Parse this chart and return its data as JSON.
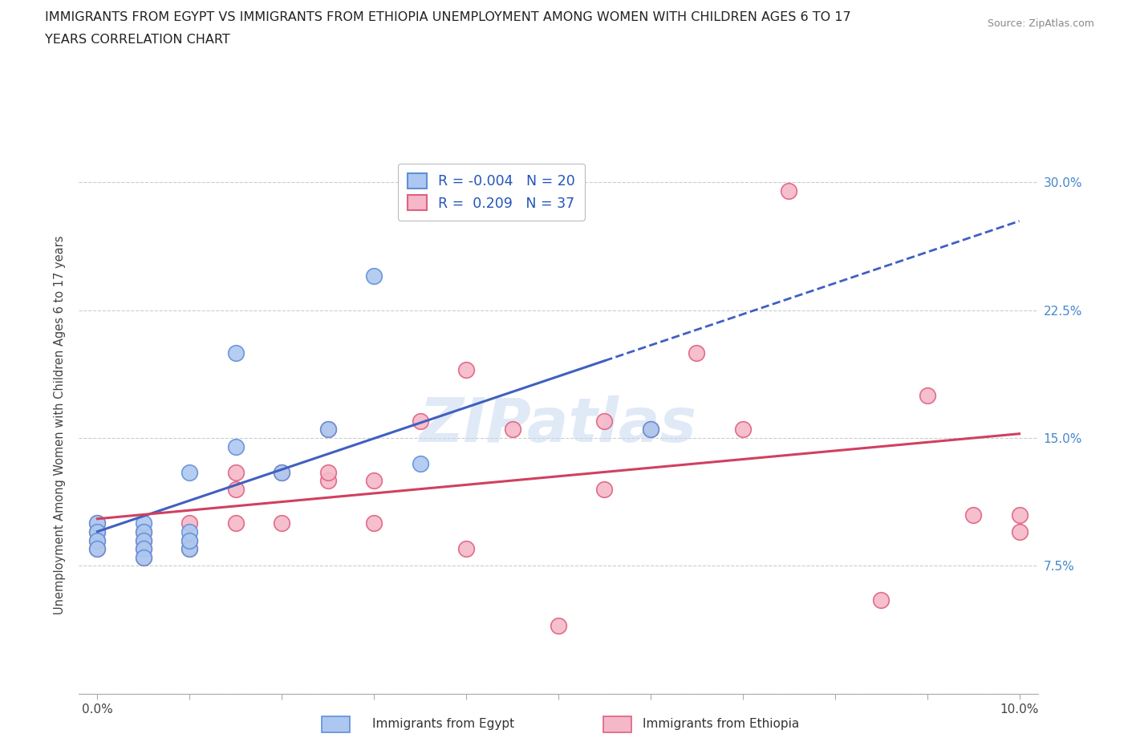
{
  "title_line1": "IMMIGRANTS FROM EGYPT VS IMMIGRANTS FROM ETHIOPIA UNEMPLOYMENT AMONG WOMEN WITH CHILDREN AGES 6 TO 17",
  "title_line2": "YEARS CORRELATION CHART",
  "source": "Source: ZipAtlas.com",
  "ylabel": "Unemployment Among Women with Children Ages 6 to 17 years",
  "xlim": [
    0.0,
    0.1
  ],
  "ylim": [
    0.0,
    0.315
  ],
  "ytick_positions": [
    0.0,
    0.075,
    0.15,
    0.225,
    0.3
  ],
  "ytick_labels": [
    "",
    "7.5%",
    "15.0%",
    "22.5%",
    "30.0%"
  ],
  "watermark": "ZIPatlas",
  "egypt_color": "#adc8f0",
  "ethiopia_color": "#f5b8c8",
  "egypt_edge_color": "#6090d8",
  "ethiopia_edge_color": "#e06080",
  "egypt_line_color": "#4060c0",
  "ethiopia_line_color": "#d04060",
  "background_color": "#ffffff",
  "grid_color": "#cccccc",
  "egypt_scatter_x": [
    0.0,
    0.0,
    0.0,
    0.0,
    0.005,
    0.005,
    0.005,
    0.005,
    0.005,
    0.01,
    0.01,
    0.01,
    0.01,
    0.015,
    0.015,
    0.02,
    0.025,
    0.03,
    0.035,
    0.06
  ],
  "egypt_scatter_y": [
    0.1,
    0.095,
    0.09,
    0.085,
    0.1,
    0.095,
    0.09,
    0.085,
    0.08,
    0.095,
    0.085,
    0.13,
    0.09,
    0.2,
    0.145,
    0.13,
    0.155,
    0.245,
    0.135,
    0.155
  ],
  "ethiopia_scatter_x": [
    0.0,
    0.0,
    0.0,
    0.0,
    0.005,
    0.005,
    0.005,
    0.005,
    0.01,
    0.01,
    0.01,
    0.015,
    0.015,
    0.015,
    0.02,
    0.02,
    0.025,
    0.025,
    0.025,
    0.03,
    0.03,
    0.035,
    0.04,
    0.04,
    0.045,
    0.05,
    0.055,
    0.055,
    0.06,
    0.065,
    0.07,
    0.075,
    0.085,
    0.09,
    0.095,
    0.1,
    0.1
  ],
  "ethiopia_scatter_y": [
    0.1,
    0.095,
    0.09,
    0.085,
    0.095,
    0.09,
    0.085,
    0.08,
    0.1,
    0.09,
    0.085,
    0.13,
    0.12,
    0.1,
    0.13,
    0.1,
    0.125,
    0.13,
    0.155,
    0.125,
    0.1,
    0.16,
    0.19,
    0.085,
    0.155,
    0.04,
    0.12,
    0.16,
    0.155,
    0.2,
    0.155,
    0.295,
    0.055,
    0.175,
    0.105,
    0.105,
    0.095
  ]
}
